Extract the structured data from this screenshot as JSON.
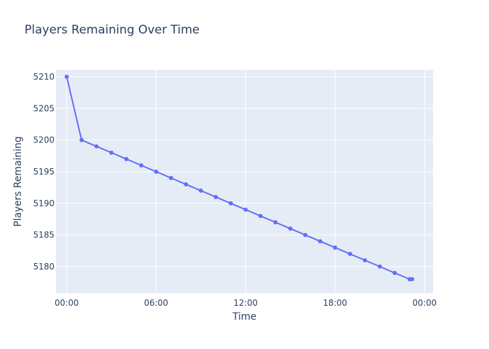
{
  "chart_data": {
    "type": "line",
    "title": "Players Remaining Over Time",
    "xlabel": "Time",
    "ylabel": "Players Remaining",
    "x": [
      "00:00",
      "01:00",
      "02:00",
      "03:00",
      "04:00",
      "05:00",
      "06:00",
      "07:00",
      "08:00",
      "09:00",
      "10:00",
      "11:00",
      "12:00",
      "13:00",
      "14:00",
      "15:00",
      "16:00",
      "17:00",
      "18:00",
      "19:00",
      "20:00",
      "21:00",
      "22:00",
      "23:00",
      "23:10"
    ],
    "series": [
      {
        "values": [
          5210,
          5200,
          5199,
          5198,
          5197,
          5196,
          5195,
          5194,
          5193,
          5192,
          5191,
          5190,
          5189,
          5188,
          5187,
          5186,
          5185,
          5184,
          5183,
          5182,
          5181,
          5180,
          5179,
          5178,
          5178
        ]
      }
    ],
    "x_ticks": [
      "00:00",
      "06:00",
      "12:00",
      "18:00",
      "00:00"
    ],
    "y_ticks": [
      5180,
      5185,
      5190,
      5195,
      5200,
      5205,
      5210
    ],
    "ylim": [
      5175.8,
      5211.1
    ],
    "grid": true,
    "colors": {
      "line": "#636efa",
      "plot_bg": "#e5ecf6",
      "grid": "#ffffff"
    }
  }
}
